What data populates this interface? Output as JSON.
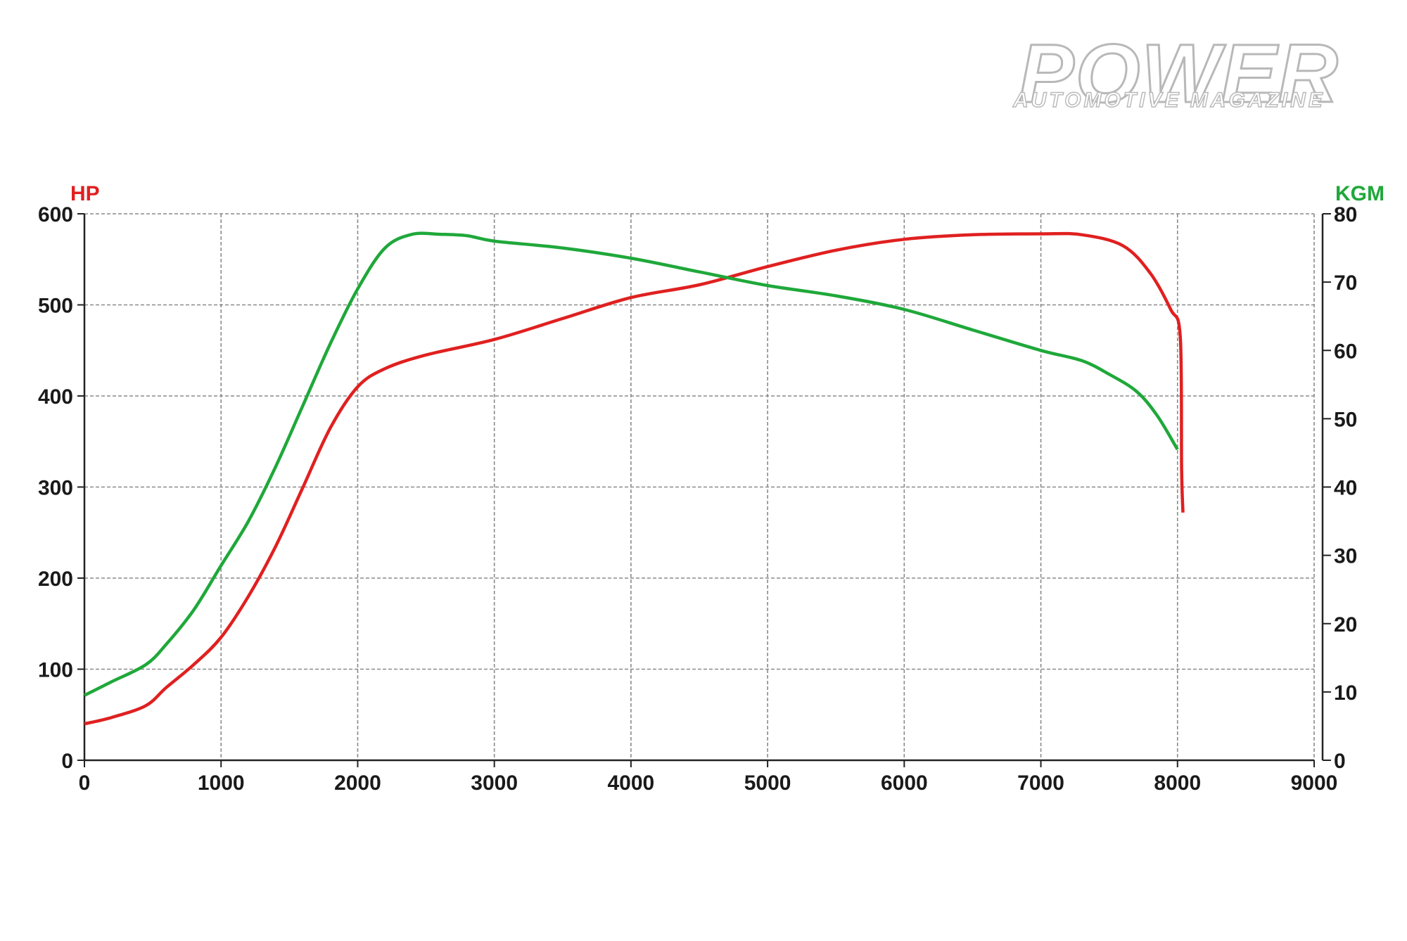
{
  "logo": {
    "main": "POWER",
    "sub": "AUTOMOTIVE MAGAZINE"
  },
  "chart_data": {
    "type": "line",
    "title": "",
    "xlabel": "",
    "ylabel": "HP",
    "y2label": "KGM",
    "xlim": [
      0,
      9000
    ],
    "ylim": [
      0,
      600
    ],
    "y2lim": [
      0,
      80
    ],
    "x_ticks": [
      0,
      1000,
      2000,
      3000,
      4000,
      5000,
      6000,
      7000,
      8000,
      9000
    ],
    "y_ticks": [
      0,
      100,
      200,
      300,
      400,
      500,
      600
    ],
    "y2_ticks": [
      0,
      10,
      20,
      30,
      40,
      50,
      60,
      70,
      80
    ],
    "grid": true,
    "colors": {
      "hp": "#e02020",
      "kgm": "#1fa83a",
      "hp_label": "#e02020",
      "kgm_label": "#1fa83a",
      "grid": "#8a8a8a",
      "axis": "#222222"
    },
    "series": [
      {
        "key": "hp",
        "axis": "left",
        "x": [
          0,
          200,
          450,
          600,
          800,
          1000,
          1200,
          1400,
          1600,
          1800,
          2000,
          2200,
          2500,
          3000,
          3500,
          4000,
          4500,
          5000,
          5500,
          6000,
          6500,
          7000,
          7300,
          7600,
          7800,
          7950,
          8020,
          8030,
          8040
        ],
        "values": [
          40,
          47,
          60,
          80,
          105,
          135,
          180,
          235,
          300,
          365,
          410,
          430,
          445,
          462,
          485,
          508,
          522,
          542,
          560,
          572,
          577,
          578,
          577,
          565,
          535,
          495,
          465,
          320,
          272
        ]
      },
      {
        "key": "kgm",
        "axis": "right",
        "x": [
          0,
          200,
          450,
          600,
          800,
          1000,
          1200,
          1400,
          1600,
          1800,
          2000,
          2200,
          2400,
          2600,
          2800,
          3000,
          3500,
          4000,
          4500,
          5000,
          5500,
          6000,
          6500,
          7000,
          7300,
          7500,
          7700,
          7850,
          8000
        ],
        "values": [
          9.5,
          11.5,
          14,
          17,
          22,
          28.5,
          35,
          43,
          52,
          61,
          69,
          75,
          77,
          77,
          76.8,
          76,
          75,
          73.5,
          71.5,
          69.5,
          68,
          66,
          63,
          60,
          58.5,
          56.5,
          54,
          50.5,
          45.5
        ]
      }
    ]
  }
}
